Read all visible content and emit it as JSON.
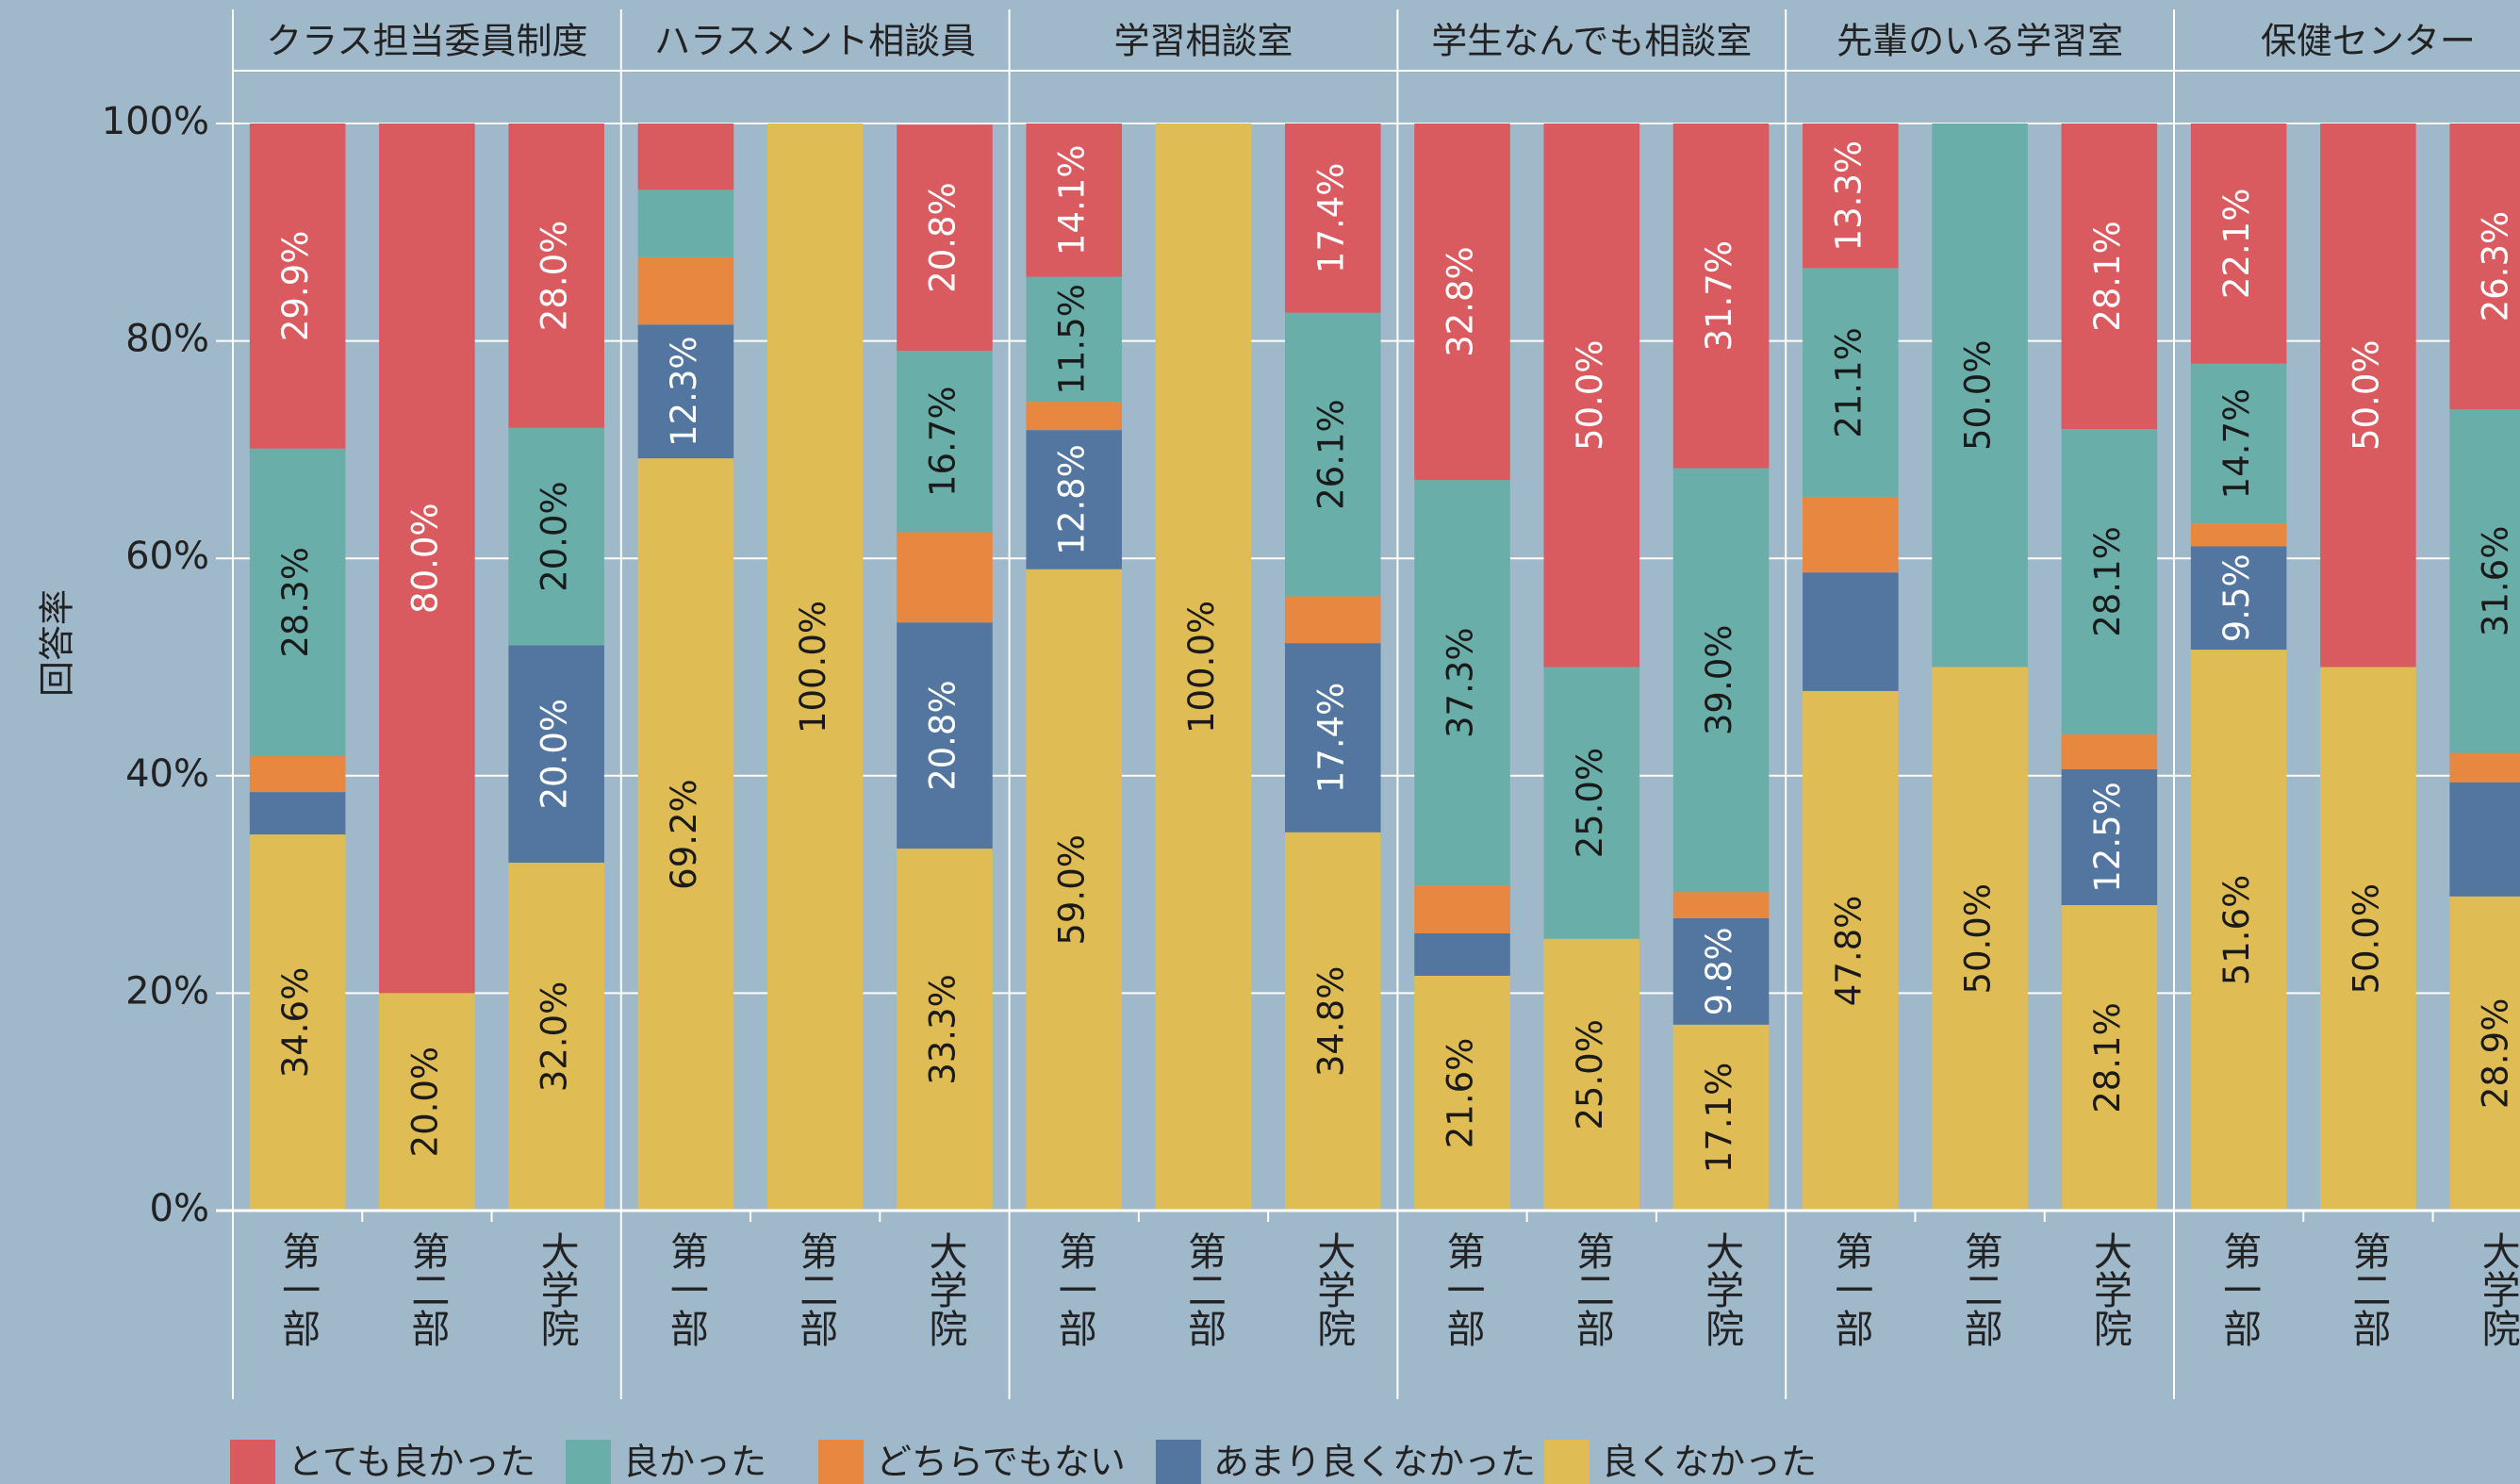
{
  "chart_data": {
    "type": "bar",
    "stacked": true,
    "ylabel": "回答率",
    "ylim": [
      0,
      100
    ],
    "yticks": [
      {
        "value": 0,
        "label": "0%"
      },
      {
        "value": 20,
        "label": "20%"
      },
      {
        "value": 40,
        "label": "40%"
      },
      {
        "value": 60,
        "label": "60%"
      },
      {
        "value": 80,
        "label": "80%"
      },
      {
        "value": 100,
        "label": "100%"
      }
    ],
    "grid": true,
    "legend": "bottom",
    "series": [
      {
        "name": "とても良かった",
        "color": "#d95b60"
      },
      {
        "name": "良かった",
        "color": "#6aaea9"
      },
      {
        "name": "どちらでもない",
        "color": "#e8873f"
      },
      {
        "name": "あまり良くなかった",
        "color": "#52769f"
      },
      {
        "name": "良くなかった",
        "color": "#e0bd54"
      }
    ],
    "panels": [
      {
        "title": "クラス担当委員制度",
        "categories": [
          "第一部",
          "第二部",
          "大学院"
        ],
        "values": [
          [
            29.9,
            80.0,
            28.0
          ],
          [
            28.3,
            0,
            20.0
          ],
          [
            3.3,
            0,
            0
          ],
          [
            3.9,
            0,
            20.0
          ],
          [
            34.6,
            20.0,
            32.0
          ]
        ],
        "value_labels": [
          [
            "29.9%",
            "80.0%",
            "28.0%"
          ],
          [
            "28.3%",
            null,
            "20.0%"
          ],
          [
            null,
            null,
            null
          ],
          [
            null,
            null,
            "20.0%"
          ],
          [
            "34.6%",
            "20.0%",
            "32.0%"
          ]
        ]
      },
      {
        "title": "ハラスメント相談員",
        "categories": [
          "第一部",
          "第二部",
          "大学院"
        ],
        "values": [
          [
            6.1,
            0,
            20.8
          ],
          [
            6.2,
            0,
            16.7
          ],
          [
            6.2,
            0,
            8.3
          ],
          [
            12.3,
            0,
            20.8
          ],
          [
            69.2,
            100.0,
            33.3
          ]
        ],
        "value_labels": [
          [
            null,
            null,
            "20.8%"
          ],
          [
            null,
            null,
            "16.7%"
          ],
          [
            null,
            null,
            null
          ],
          [
            "12.3%",
            null,
            "20.8%"
          ],
          [
            "69.2%",
            "100.0%",
            "33.3%"
          ]
        ]
      },
      {
        "title": "学習相談室",
        "categories": [
          "第一部",
          "第二部",
          "大学院"
        ],
        "values": [
          [
            14.1,
            0,
            17.4
          ],
          [
            11.5,
            0,
            26.1
          ],
          [
            2.6,
            0,
            4.3
          ],
          [
            12.8,
            0,
            17.4
          ],
          [
            59.0,
            100.0,
            34.8
          ]
        ],
        "value_labels": [
          [
            "14.1%",
            null,
            "17.4%"
          ],
          [
            "11.5%",
            null,
            "26.1%"
          ],
          [
            null,
            null,
            null
          ],
          [
            "12.8%",
            null,
            "17.4%"
          ],
          [
            "59.0%",
            "100.0%",
            "34.8%"
          ]
        ]
      },
      {
        "title": "学生なんでも相談室",
        "categories": [
          "第一部",
          "第二部",
          "大学院"
        ],
        "values": [
          [
            32.8,
            50.0,
            31.7
          ],
          [
            37.3,
            25.0,
            39.0
          ],
          [
            4.4,
            0,
            2.4
          ],
          [
            3.9,
            0,
            9.8
          ],
          [
            21.6,
            25.0,
            17.1
          ]
        ],
        "value_labels": [
          [
            "32.8%",
            "50.0%",
            "31.7%"
          ],
          [
            "37.3%",
            "25.0%",
            "39.0%"
          ],
          [
            null,
            null,
            null
          ],
          [
            null,
            null,
            "9.8%"
          ],
          [
            "21.6%",
            "25.0%",
            "17.1%"
          ]
        ]
      },
      {
        "title": "先輩のいる学習室",
        "categories": [
          "第一部",
          "第二部",
          "大学院"
        ],
        "values": [
          [
            13.3,
            0,
            28.1
          ],
          [
            21.1,
            50.0,
            28.1
          ],
          [
            6.9,
            0,
            3.2
          ],
          [
            10.9,
            0,
            12.5
          ],
          [
            47.8,
            50.0,
            28.1
          ]
        ],
        "value_labels": [
          [
            "13.3%",
            null,
            "28.1%"
          ],
          [
            "21.1%",
            "50.0%",
            "28.1%"
          ],
          [
            null,
            null,
            null
          ],
          [
            null,
            null,
            "12.5%"
          ],
          [
            "47.8%",
            "50.0%",
            "28.1%"
          ]
        ]
      },
      {
        "title": "保健センター",
        "categories": [
          "第一部",
          "第二部",
          "大学院"
        ],
        "values": [
          [
            22.1,
            50.0,
            26.3
          ],
          [
            14.7,
            0,
            31.6
          ],
          [
            2.1,
            0,
            2.7
          ],
          [
            9.5,
            0,
            10.5
          ],
          [
            51.6,
            50.0,
            28.9
          ]
        ],
        "value_labels": [
          [
            "22.1%",
            "50.0%",
            "26.3%"
          ],
          [
            "14.7%",
            null,
            "31.6%"
          ],
          [
            null,
            null,
            null
          ],
          [
            "9.5%",
            null,
            null
          ],
          [
            "51.6%",
            "50.0%",
            "28.9%"
          ]
        ]
      }
    ]
  }
}
